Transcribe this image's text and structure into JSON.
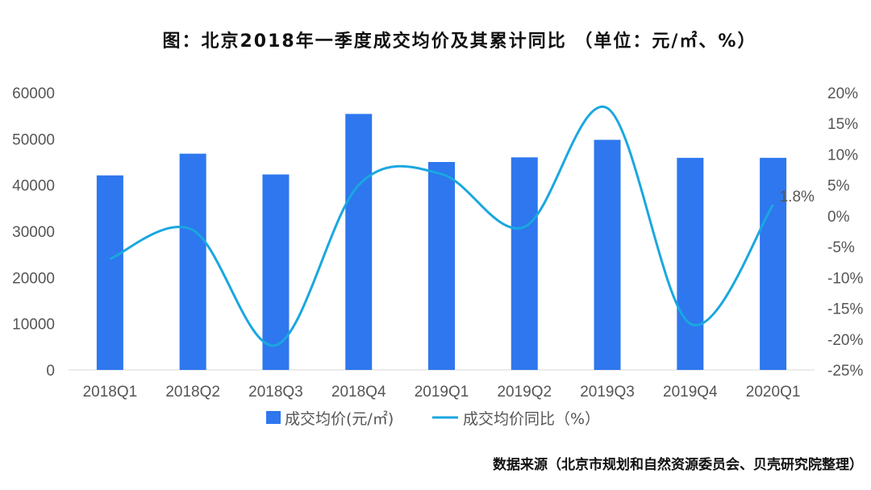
{
  "chart_data": {
    "type": "bar",
    "title": "图：北京2018年一季度成交均价及其累计同比 （单位：元/㎡、%）",
    "categories": [
      "2018Q1",
      "2018Q2",
      "2018Q3",
      "2018Q4",
      "2019Q1",
      "2019Q2",
      "2019Q3",
      "2019Q4",
      "2020Q1"
    ],
    "series": [
      {
        "name": "成交均价(元/㎡)",
        "type": "bar",
        "axis": "left",
        "color": "#2E77EE",
        "values": [
          42100,
          46800,
          42300,
          55400,
          45000,
          46000,
          49800,
          45900,
          45900
        ]
      },
      {
        "name": "成交均价同比（%）",
        "type": "line",
        "axis": "right",
        "color": "#1AA7E0",
        "values": [
          -7.0,
          -2.3,
          -21.0,
          5.0,
          6.8,
          -1.8,
          17.5,
          -17.5,
          1.8
        ]
      }
    ],
    "y_left": {
      "min": 0,
      "max": 60000,
      "ticks": [
        "0",
        "10000",
        "20000",
        "30000",
        "40000",
        "50000",
        "60000"
      ]
    },
    "y_right": {
      "min": -25,
      "max": 20,
      "ticks": [
        "-25%",
        "-20%",
        "-15%",
        "-10%",
        "-5%",
        "0%",
        "5%",
        "10%",
        "15%",
        "20%"
      ]
    },
    "data_label": {
      "series": 1,
      "index": 8,
      "text": "1.8%"
    },
    "legend_position": "bottom",
    "grid": false,
    "source": "数据来源（北京市规划和自然资源委员会、贝壳研究院整理）"
  }
}
